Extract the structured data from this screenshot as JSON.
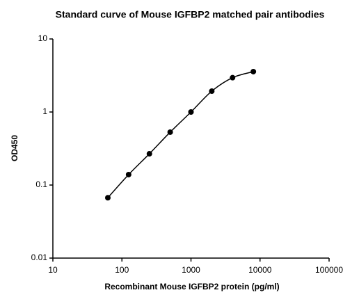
{
  "chart_data": {
    "type": "scatter",
    "title": "Standard curve of Mouse IGFBP2 matched pair antibodies",
    "x_label": "Recombinant Mouse IGFBP2 protein (pg/ml)",
    "y_label": "OD450",
    "x": [
      62.5,
      125,
      250,
      500,
      1000,
      2000,
      4000,
      8000
    ],
    "series": [
      {
        "color": "#000000",
        "values": [
          0.067,
          0.139,
          0.268,
          0.53,
          1.0,
          1.93,
          2.95,
          3.57
        ]
      }
    ],
    "xlim": [
      10,
      100000
    ],
    "xticks": [
      10,
      100,
      1000,
      10000,
      100000
    ],
    "ylim": [
      0.01,
      10
    ],
    "yticks": [
      0.01,
      0.1,
      1,
      10
    ],
    "xlog": true,
    "ylog": true,
    "fit_curve": true
  }
}
